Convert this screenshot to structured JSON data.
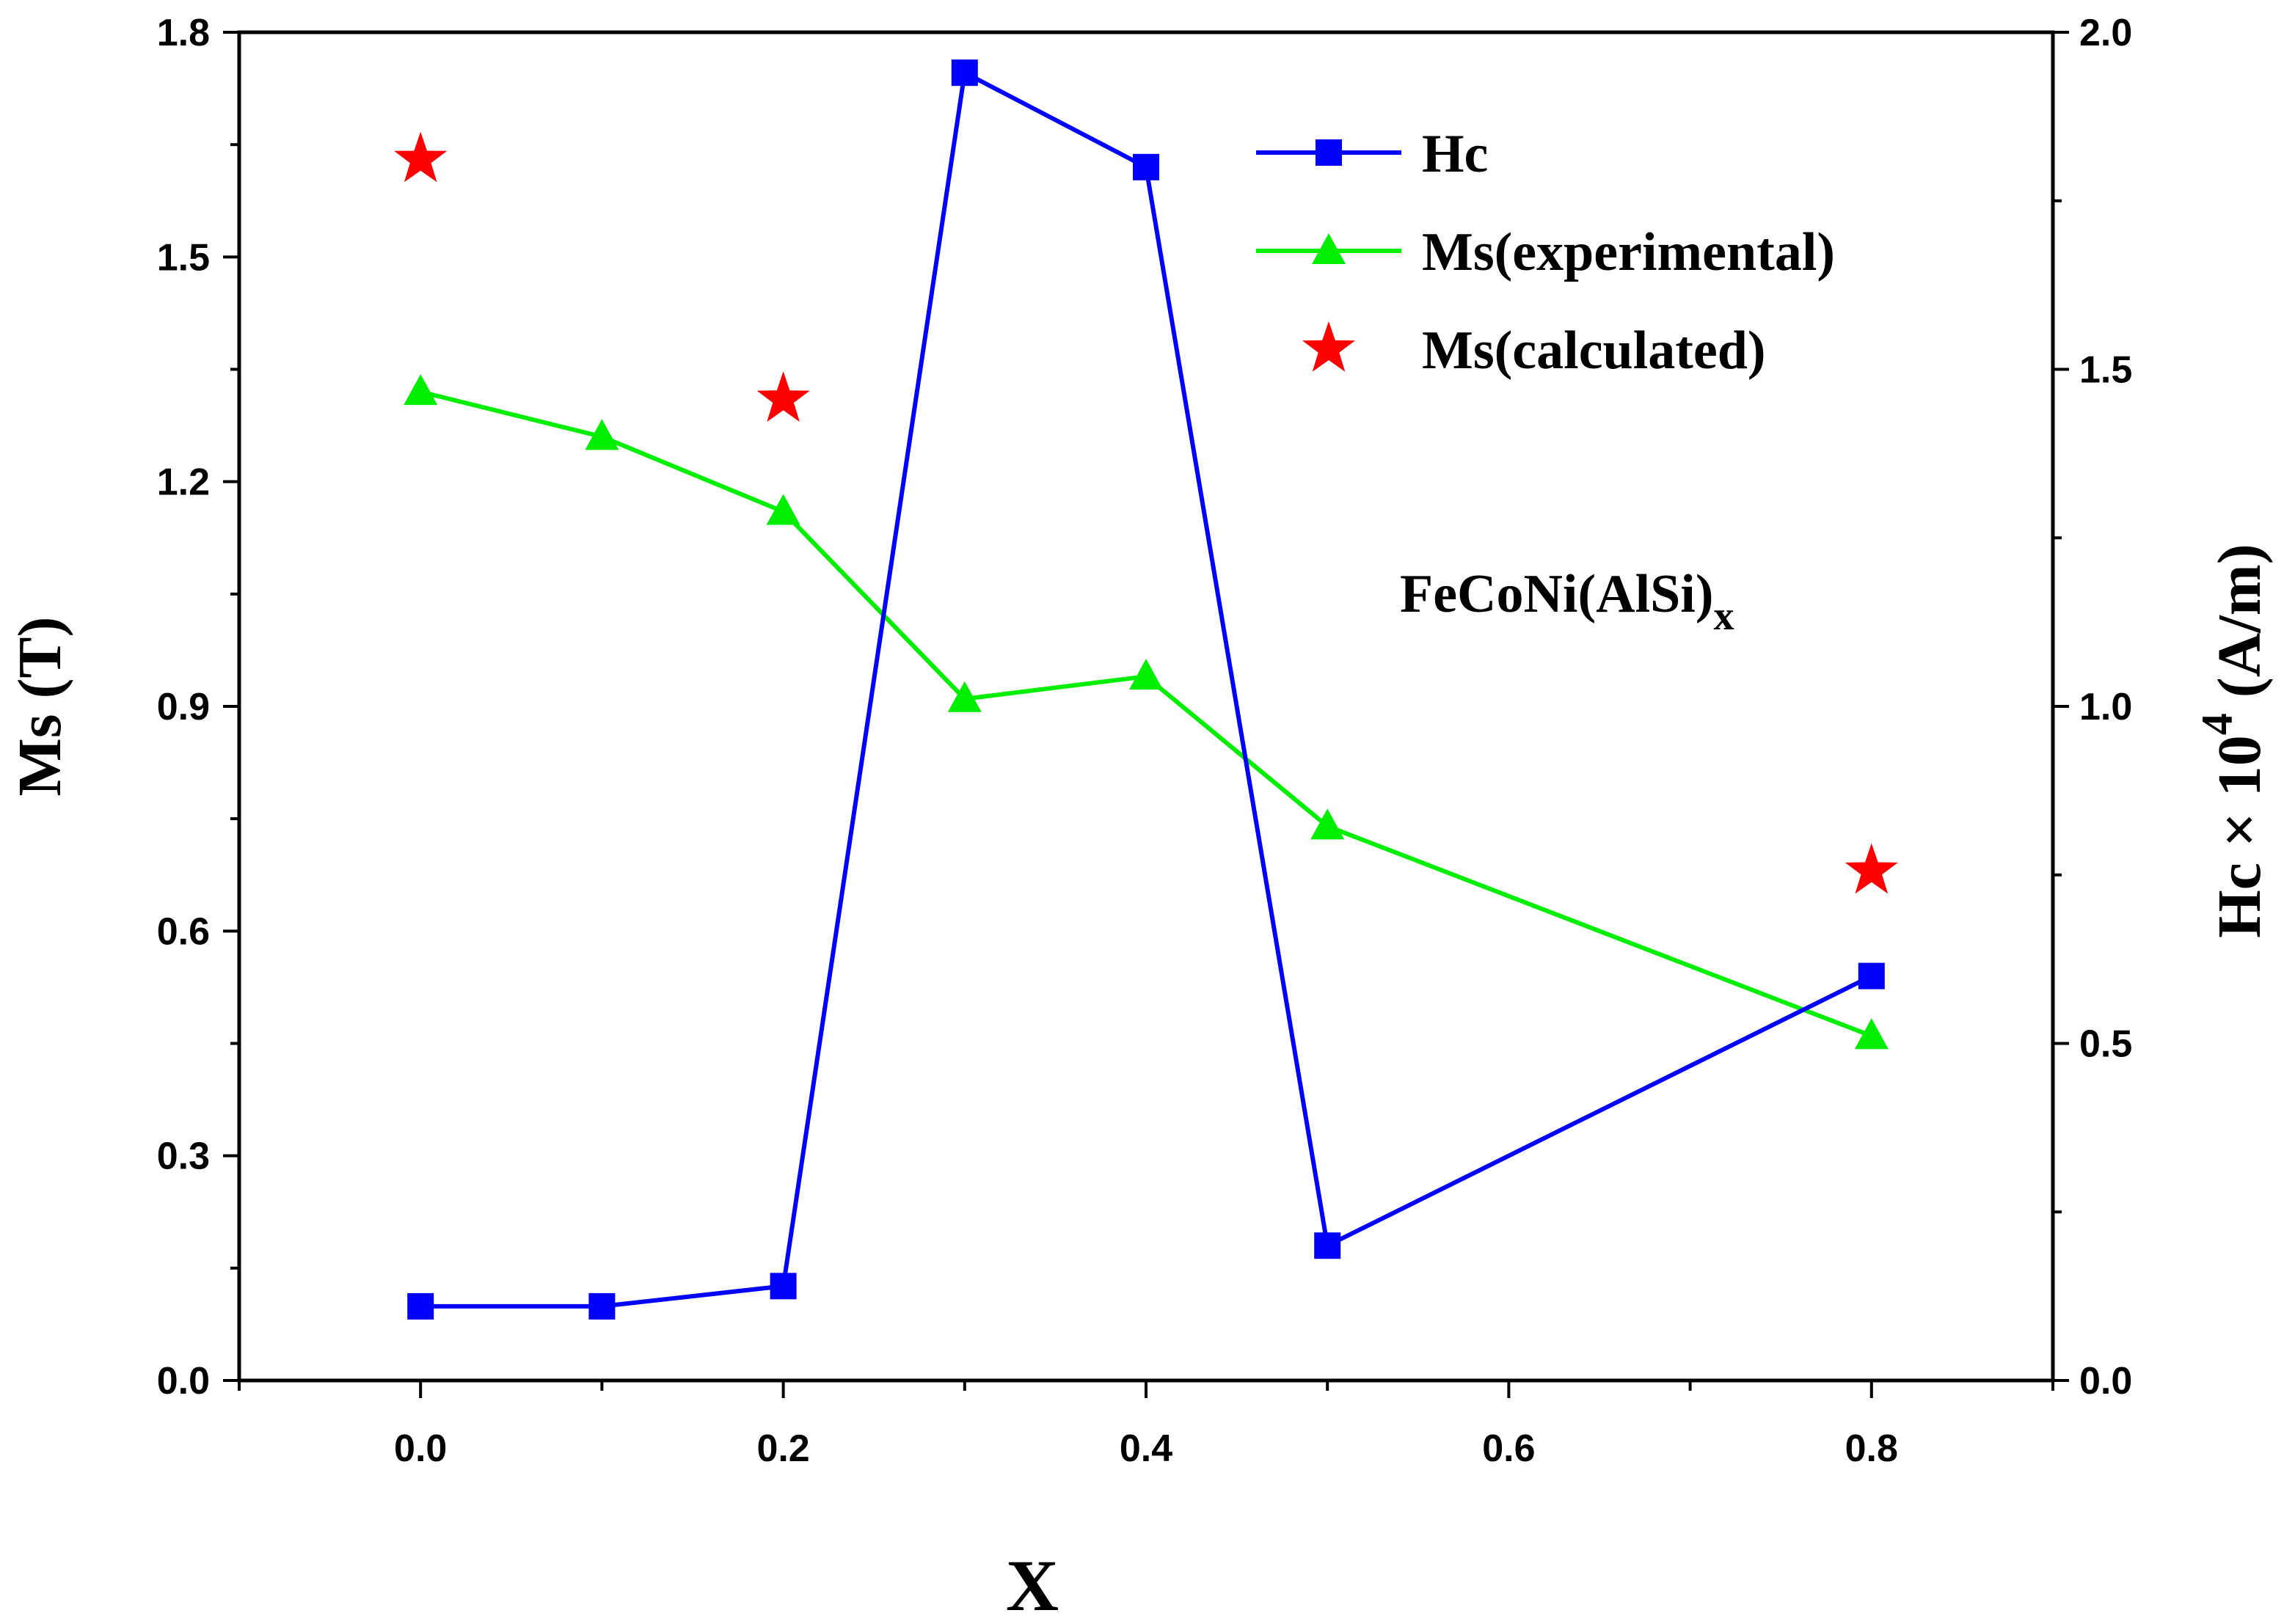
{
  "chart_data": {
    "type": "line",
    "xlabel": "X",
    "ylabel_left": "Ms (T)",
    "ylabel_right": {
      "prefix": "Hc × 10",
      "exp": "4",
      "suffix": " (A/m)"
    },
    "xlim": [
      -0.1,
      0.9
    ],
    "ylim_left": [
      0,
      1.8
    ],
    "ylim_right": [
      0,
      2.0
    ],
    "x_ticks": [
      0.0,
      0.2,
      0.4,
      0.6,
      0.8
    ],
    "x_tick_labels": [
      "0.0",
      "0.2",
      "0.4",
      "0.6",
      "0.8"
    ],
    "x_minor_ticks": [
      -0.1,
      0.1,
      0.3,
      0.5,
      0.7,
      0.9
    ],
    "y_left_ticks": [
      0.0,
      0.3,
      0.6,
      0.9,
      1.2,
      1.5,
      1.8
    ],
    "y_left_tick_labels": [
      "0.0",
      "0.3",
      "0.6",
      "0.9",
      "1.2",
      "1.5",
      "1.8"
    ],
    "y_right_ticks": [
      0.0,
      0.5,
      1.0,
      1.5,
      2.0
    ],
    "y_right_tick_labels": [
      "0.0",
      "0.5",
      "1.0",
      "1.5",
      "2.0"
    ],
    "grid": false,
    "legend_position": "top-right",
    "annotation": {
      "text": "FeCoNi(AlSi)",
      "subscript": "x"
    },
    "series": [
      {
        "name": "Hc",
        "axis": "right",
        "marker": "square",
        "color": "#0000ff",
        "x": [
          0.0,
          0.1,
          0.2,
          0.3,
          0.4,
          0.5,
          0.8
        ],
        "y": [
          0.11,
          0.11,
          0.14,
          1.94,
          1.8,
          0.2,
          0.6
        ]
      },
      {
        "name": "Ms(experimental)",
        "axis": "left",
        "marker": "triangle",
        "color": "#00ee00",
        "x": [
          0.0,
          0.1,
          0.2,
          0.3,
          0.4,
          0.5,
          0.8
        ],
        "y": [
          1.32,
          1.26,
          1.16,
          0.91,
          0.94,
          0.74,
          0.46
        ]
      },
      {
        "name": "Ms(calculated)",
        "axis": "left",
        "marker": "star",
        "color": "#ff0000",
        "line": false,
        "x": [
          0.0,
          0.2,
          0.8
        ],
        "y": [
          1.63,
          1.31,
          0.68
        ]
      }
    ]
  }
}
